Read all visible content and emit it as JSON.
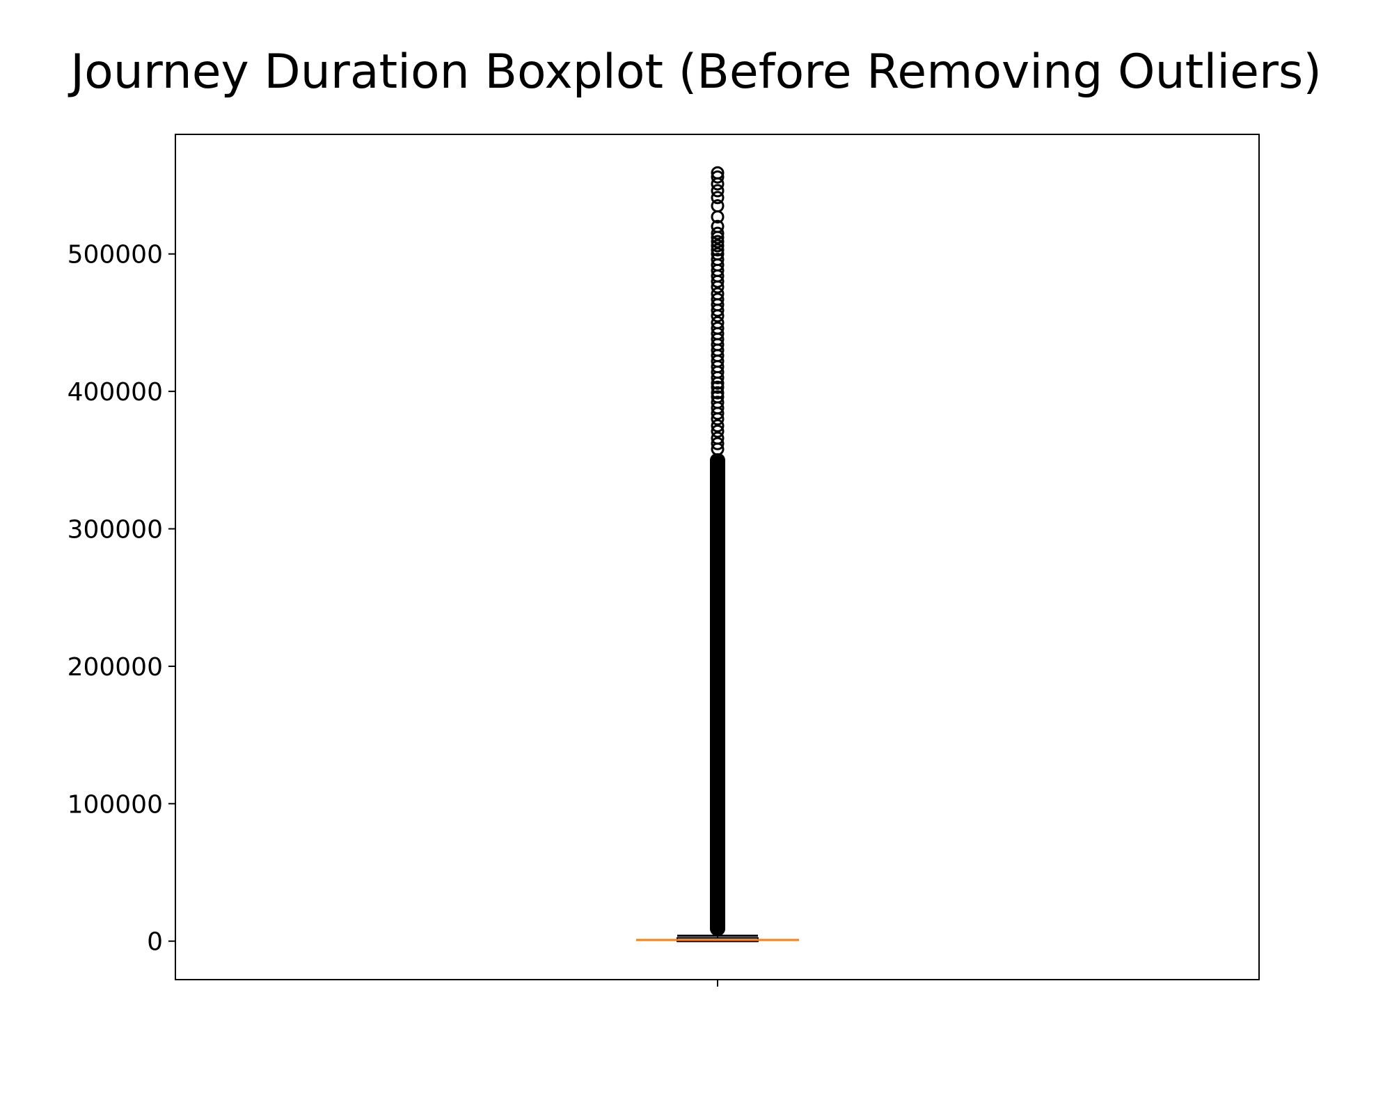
{
  "chart_data": {
    "type": "boxplot",
    "title": "Journey Duration Boxplot (Before Removing Outliers)",
    "xlabel": "",
    "ylabel": "",
    "categories": [
      ""
    ],
    "ylim": [
      -28000,
      587000
    ],
    "yticks": [
      0,
      100000,
      200000,
      300000,
      400000,
      500000
    ],
    "ytick_labels": [
      "0",
      "100000",
      "200000",
      "300000",
      "400000",
      "500000"
    ],
    "grid": false,
    "box": {
      "whisker_low": 0,
      "q1": 400,
      "median": 900,
      "q3": 1800,
      "whisker_high": 3900,
      "dense_outliers_from": 3900,
      "dense_outliers_to": 355000,
      "outliers": [
        358000,
        362000,
        366000,
        371000,
        375000,
        380000,
        384000,
        388000,
        392000,
        396000,
        399000,
        403000,
        406000,
        410000,
        414000,
        418000,
        422000,
        426000,
        430000,
        434000,
        438000,
        442000,
        446000,
        450000,
        455000,
        459000,
        463000,
        467000,
        471000,
        476000,
        480000,
        484000,
        488000,
        492000,
        496000,
        500000,
        503000,
        506000,
        509000,
        512000,
        515000,
        520000,
        527000,
        535000,
        541000,
        546000,
        551000,
        556000,
        559000
      ]
    },
    "colors": {
      "box": "#000000",
      "median": "#ff7f0e",
      "outlier_edge": "#000000"
    }
  }
}
